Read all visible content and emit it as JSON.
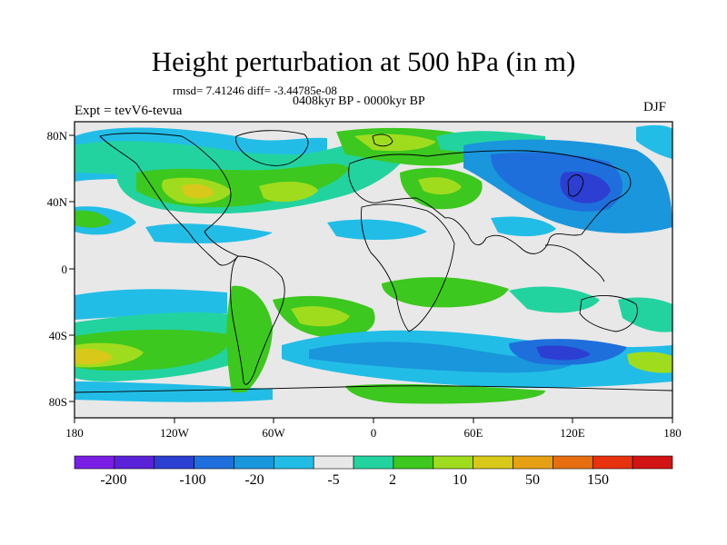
{
  "header": {
    "title": "Height perturbation at 500 hPa (in m)",
    "stats": "rmsd= 7.41246  diff= -3.44785e-08",
    "period": "0408kyr BP - 0000kyr BP",
    "experiment": "Expt = tevV6-tevua",
    "season": "DJF"
  },
  "axes": {
    "lat_labels": [
      "80N",
      "40N",
      "0",
      "40S",
      "80S"
    ],
    "lon_labels": [
      "180",
      "120W",
      "60W",
      "0",
      "60E",
      "120E",
      "180"
    ]
  },
  "colorbar": {
    "colors": [
      "#7a1ee6",
      "#5a22d8",
      "#2c3fd2",
      "#1e6fdc",
      "#1a96dc",
      "#22bde6",
      "#e8e8e8",
      "#22d3a0",
      "#3cc81e",
      "#a0dc1e",
      "#d8c81a",
      "#e6a014",
      "#e66e10",
      "#e6320e",
      "#d21414"
    ],
    "labels": [
      "-200",
      "-100",
      "-20",
      "-5",
      "2",
      "10",
      "50",
      "150"
    ]
  }
}
